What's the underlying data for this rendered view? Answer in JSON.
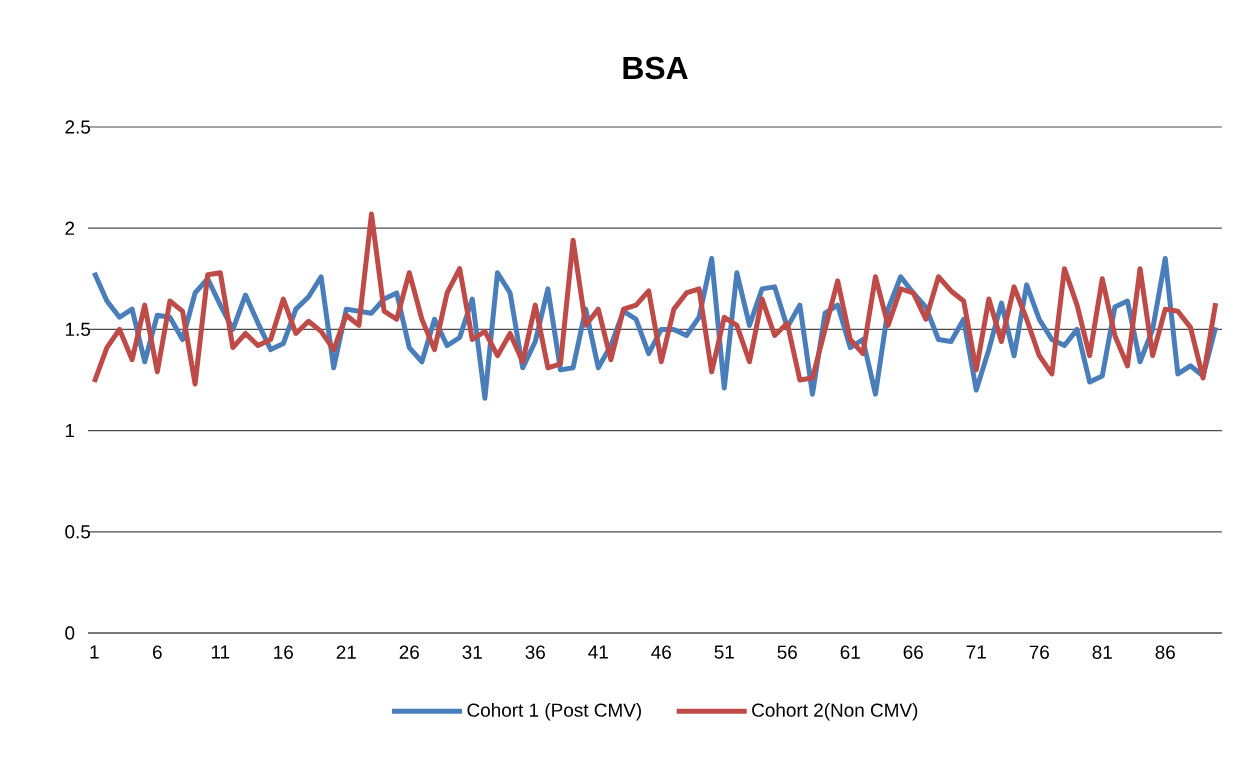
{
  "chart_data": {
    "type": "line",
    "title": "BSA",
    "categories": [
      "1",
      null,
      null,
      null,
      null,
      "6",
      null,
      null,
      null,
      null,
      "11",
      null,
      null,
      null,
      null,
      "16",
      null,
      null,
      null,
      null,
      "21",
      null,
      null,
      null,
      null,
      "26",
      null,
      null,
      null,
      null,
      "31",
      null,
      null,
      null,
      null,
      "36",
      null,
      null,
      null,
      null,
      "41",
      null,
      null,
      null,
      null,
      "46",
      null,
      null,
      null,
      null,
      "51",
      null,
      null,
      null,
      null,
      "56",
      null,
      null,
      null,
      null,
      "61",
      null,
      null,
      null,
      null,
      "66",
      null,
      null,
      null,
      null,
      "71",
      null,
      null,
      null,
      null,
      "76",
      null,
      null,
      null,
      null,
      "81",
      null,
      null,
      null,
      null,
      "86",
      null,
      null,
      null,
      null
    ],
    "series": [
      {
        "name": "Cohort 1 (Post CMV)",
        "color": "#4a7ebb",
        "values": [
          1.78,
          1.64,
          1.56,
          1.6,
          1.34,
          1.57,
          1.56,
          1.45,
          1.68,
          1.75,
          1.62,
          1.5,
          1.67,
          1.53,
          1.4,
          1.43,
          1.6,
          1.66,
          1.76,
          1.31,
          1.6,
          1.59,
          1.58,
          1.65,
          1.68,
          1.41,
          1.34,
          1.55,
          1.42,
          1.46,
          1.65,
          1.16,
          1.78,
          1.68,
          1.31,
          1.44,
          1.7,
          1.3,
          1.31,
          1.6,
          1.31,
          1.42,
          1.59,
          1.55,
          1.38,
          1.5,
          1.5,
          1.47,
          1.56,
          1.85,
          1.21,
          1.78,
          1.52,
          1.7,
          1.71,
          1.51,
          1.62,
          1.18,
          1.58,
          1.62,
          1.41,
          1.45,
          1.18,
          1.6,
          1.76,
          1.68,
          1.61,
          1.45,
          1.44,
          1.55,
          1.2,
          1.4,
          1.63,
          1.37,
          1.72,
          1.55,
          1.45,
          1.42,
          1.5,
          1.24,
          1.27,
          1.61,
          1.64,
          1.34,
          1.5,
          1.85,
          1.28,
          1.32,
          1.27,
          1.51
        ]
      },
      {
        "name": "Cohort 2(Non CMV)",
        "color": "#be4b48",
        "values": [
          1.24,
          1.41,
          1.5,
          1.35,
          1.62,
          1.29,
          1.64,
          1.59,
          1.23,
          1.77,
          1.78,
          1.41,
          1.48,
          1.42,
          1.45,
          1.65,
          1.48,
          1.54,
          1.49,
          1.4,
          1.57,
          1.52,
          2.07,
          1.59,
          1.55,
          1.78,
          1.55,
          1.4,
          1.68,
          1.8,
          1.45,
          1.49,
          1.37,
          1.48,
          1.34,
          1.62,
          1.31,
          1.33,
          1.94,
          1.52,
          1.6,
          1.35,
          1.6,
          1.62,
          1.69,
          1.34,
          1.6,
          1.68,
          1.7,
          1.29,
          1.56,
          1.52,
          1.34,
          1.65,
          1.47,
          1.53,
          1.25,
          1.26,
          1.5,
          1.74,
          1.45,
          1.38,
          1.76,
          1.52,
          1.7,
          1.68,
          1.55,
          1.76,
          1.69,
          1.64,
          1.3,
          1.65,
          1.44,
          1.71,
          1.55,
          1.37,
          1.28,
          1.8,
          1.62,
          1.37,
          1.75,
          1.47,
          1.32,
          1.8,
          1.37,
          1.6,
          1.59,
          1.51,
          1.26,
          1.63
        ]
      }
    ],
    "ylim": [
      0,
      2.5
    ],
    "yticks": [
      0,
      0.5,
      1,
      1.5,
      2,
      2.5
    ],
    "grid": "y",
    "legend": "bottom"
  }
}
